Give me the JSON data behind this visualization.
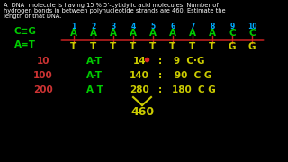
{
  "background_color": "#000000",
  "title_line1": "A  DNA  molecule is having 15 % 5’-cytidylic acid molecules. Number of",
  "title_line2": "hydrogen bonds in between polynucleotide strands are 460. Estimate the",
  "title_line3": "length of that DNA.",
  "title_color": "#ffffff",
  "title_fontsize": 4.8,
  "cg_label": "C≡G",
  "cg_color": "#00cc00",
  "at_label": "A=T",
  "at_color": "#00cc00",
  "numbers": [
    "1",
    "2",
    "3",
    "4",
    "5",
    "6",
    "7",
    "8",
    "9",
    "10"
  ],
  "numbers_color": "#00aaff",
  "top_strand": [
    "A",
    "A",
    "A",
    "A",
    "A",
    "A",
    "A",
    "A",
    "C",
    "C"
  ],
  "top_color": "#00cc00",
  "bot_strand": [
    "T",
    "T",
    "T",
    "T",
    "T",
    "T",
    "T",
    "T",
    "G",
    "G"
  ],
  "bot_color": "#cccc00",
  "line_color": "#cc2222",
  "row1_label": "10",
  "row1_at": "A-T",
  "row1_val": "14",
  "row1_colon": ":",
  "row1_cg": "9  C·G",
  "row2_label": "100",
  "row2_at": "A-T",
  "row2_val": "140",
  "row2_colon": ":",
  "row2_cg": "90  C G",
  "row3_label": "200",
  "row3_at": "A T",
  "row3_val": "280",
  "row3_colon": ":",
  "row3_cg": "180  C G",
  "calc_label_color": "#cc3333",
  "calc_at_color": "#00cc00",
  "calc_val_color": "#cccc00",
  "sum_label": "460",
  "sum_color": "#cccc00",
  "bracket_color": "#cccc00"
}
